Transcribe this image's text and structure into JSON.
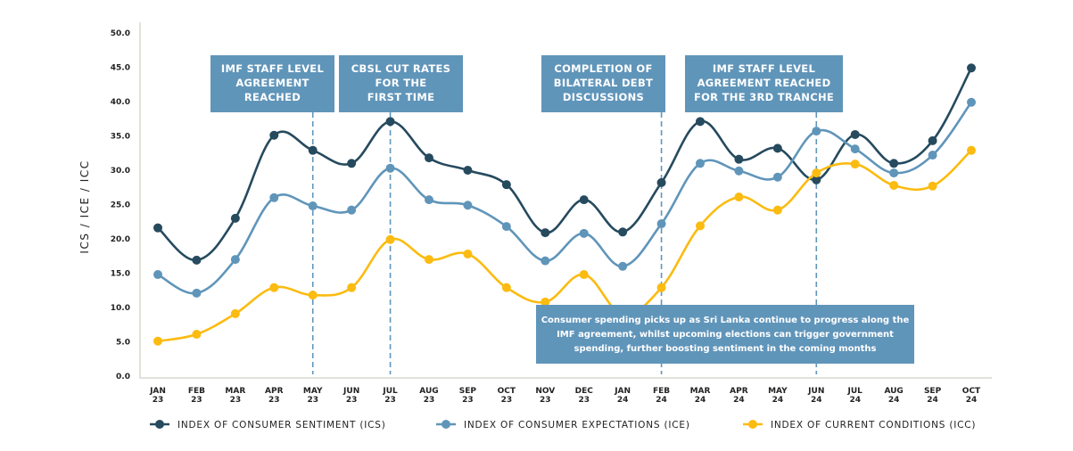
{
  "chart_data": {
    "type": "line",
    "ylabel": "ICS / ICE / ICC",
    "ylim": [
      0,
      50
    ],
    "yticks": [
      "0.0",
      "5.0",
      "10.0",
      "15.0",
      "20.0",
      "25.0",
      "30.0",
      "35.0",
      "40.0",
      "45.0",
      "50.0"
    ],
    "grid": false,
    "legend_position": "bottom",
    "categories": [
      [
        "JAN",
        "23"
      ],
      [
        "FEB",
        "23"
      ],
      [
        "MAR",
        "23"
      ],
      [
        "APR",
        "23"
      ],
      [
        "MAY",
        "23"
      ],
      [
        "JUN",
        "23"
      ],
      [
        "JUL",
        "23"
      ],
      [
        "AUG",
        "23"
      ],
      [
        "SEP",
        "23"
      ],
      [
        "OCT",
        "23"
      ],
      [
        "NOV",
        "23"
      ],
      [
        "DEC",
        "23"
      ],
      [
        "JAN",
        "24"
      ],
      [
        "FEB",
        "24"
      ],
      [
        "MAR",
        "24"
      ],
      [
        "APR",
        "24"
      ],
      [
        "MAY",
        "24"
      ],
      [
        "JUN",
        "24"
      ],
      [
        "JUL",
        "24"
      ],
      [
        "AUG",
        "24"
      ],
      [
        "SEP",
        "24"
      ],
      [
        "OCT",
        "24"
      ]
    ],
    "series": [
      {
        "name": "INDEX OF CONSUMER SENTIMENT (ICS)",
        "color": "#264a5e",
        "values": [
          21.6,
          16.9,
          23.0,
          35.1,
          32.9,
          31.0,
          37.1,
          31.8,
          30.0,
          27.9,
          20.9,
          25.7,
          21.0,
          28.2,
          37.1,
          31.6,
          33.2,
          28.6,
          35.2,
          31.0,
          34.3,
          44.9
        ]
      },
      {
        "name": "INDEX OF CONSUMER EXPECTATIONS (ICE)",
        "color": "#6095ba",
        "values": [
          14.8,
          12.1,
          17.0,
          26.0,
          24.8,
          24.2,
          30.3,
          25.7,
          24.9,
          21.8,
          16.8,
          20.8,
          16.0,
          22.2,
          31.0,
          29.9,
          29.0,
          35.7,
          33.1,
          29.6,
          32.2,
          39.9
        ]
      },
      {
        "name": "INDEX OF CURRENT CONDITIONS (ICC)",
        "color": "#fbbb10",
        "values": [
          5.1,
          6.1,
          9.1,
          12.9,
          11.8,
          12.9,
          19.9,
          17.0,
          17.8,
          12.9,
          10.8,
          14.8,
          9.0,
          12.9,
          21.9,
          26.1,
          24.2,
          29.6,
          30.9,
          27.8,
          27.7,
          32.9
        ]
      }
    ],
    "annotations": [
      {
        "at": 4,
        "lines": [
          "IMF STAFF LEVEL",
          "AGREEMENT",
          "REACHED"
        ]
      },
      {
        "at": 6,
        "lines": [
          "CBSL CUT RATES",
          "FOR THE",
          "FIRST TIME"
        ]
      },
      {
        "at": 13,
        "lines": [
          "COMPLETION OF",
          "BILATERAL DEBT",
          "DISCUSSIONS"
        ]
      },
      {
        "at": 17,
        "lines": [
          "IMF STAFF LEVEL",
          "AGREEMENT REACHED",
          "FOR THE 3RD TRANCHE"
        ]
      }
    ],
    "note": [
      "Consumer spending picks up as Sri Lanka continue to progress along the",
      "IMF agreement, whilst upcoming elections can trigger government",
      "spending, further boosting sentiment in the coming months"
    ],
    "annotation_color": "#6095ba"
  }
}
